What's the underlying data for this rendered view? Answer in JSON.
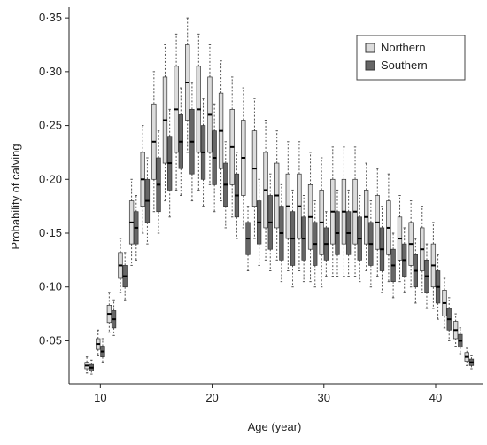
{
  "chart_data": {
    "type": "box",
    "xlabel": "Age (year)",
    "ylabel": "Probability of calving",
    "x": [
      9,
      10,
      11,
      12,
      13,
      14,
      15,
      16,
      17,
      18,
      19,
      20,
      21,
      22,
      23,
      24,
      25,
      26,
      27,
      28,
      29,
      30,
      31,
      32,
      33,
      34,
      35,
      36,
      37,
      38,
      39,
      40,
      41,
      42,
      43
    ],
    "xlim": [
      7.2,
      44.2
    ],
    "xticks": [
      10,
      20,
      30,
      40
    ],
    "ylim": [
      0.01,
      0.36
    ],
    "yticks": [
      {
        "value": 0.05,
        "label": "0·05"
      },
      {
        "value": 0.1,
        "label": "0·10"
      },
      {
        "value": 0.15,
        "label": "0·15"
      },
      {
        "value": 0.2,
        "label": "0·20"
      },
      {
        "value": 0.25,
        "label": "0·25"
      },
      {
        "value": 0.3,
        "label": "0·30"
      },
      {
        "value": 0.35,
        "label": "0·35"
      }
    ],
    "legend": "top-right",
    "series": [
      {
        "name": "Northern",
        "color": "#dcdcdc",
        "low": [
          0.02,
          0.036,
          0.058,
          0.095,
          0.12,
          0.15,
          0.17,
          0.18,
          0.19,
          0.225,
          0.19,
          0.195,
          0.18,
          0.165,
          0.155,
          0.145,
          0.125,
          0.125,
          0.115,
          0.115,
          0.105,
          0.1,
          0.11,
          0.11,
          0.11,
          0.115,
          0.11,
          0.105,
          0.105,
          0.1,
          0.095,
          0.08,
          0.062,
          0.045,
          0.027
        ],
        "q1": [
          0.024,
          0.042,
          0.067,
          0.108,
          0.14,
          0.175,
          0.2,
          0.215,
          0.225,
          0.255,
          0.225,
          0.225,
          0.21,
          0.195,
          0.185,
          0.175,
          0.155,
          0.155,
          0.145,
          0.145,
          0.135,
          0.13,
          0.14,
          0.14,
          0.14,
          0.14,
          0.135,
          0.13,
          0.125,
          0.12,
          0.115,
          0.1,
          0.073,
          0.052,
          0.031
        ],
        "median": [
          0.027,
          0.047,
          0.075,
          0.12,
          0.16,
          0.2,
          0.235,
          0.255,
          0.265,
          0.29,
          0.265,
          0.26,
          0.245,
          0.23,
          0.22,
          0.21,
          0.19,
          0.185,
          0.175,
          0.175,
          0.165,
          0.16,
          0.17,
          0.17,
          0.17,
          0.165,
          0.16,
          0.155,
          0.145,
          0.14,
          0.135,
          0.12,
          0.085,
          0.06,
          0.035
        ],
        "q3": [
          0.03,
          0.052,
          0.083,
          0.132,
          0.18,
          0.225,
          0.27,
          0.295,
          0.305,
          0.325,
          0.305,
          0.295,
          0.28,
          0.265,
          0.255,
          0.245,
          0.225,
          0.215,
          0.205,
          0.205,
          0.195,
          0.19,
          0.2,
          0.2,
          0.2,
          0.19,
          0.185,
          0.18,
          0.165,
          0.16,
          0.155,
          0.14,
          0.097,
          0.068,
          0.039
        ],
        "high": [
          0.035,
          0.06,
          0.095,
          0.145,
          0.2,
          0.25,
          0.3,
          0.325,
          0.335,
          0.35,
          0.335,
          0.325,
          0.31,
          0.295,
          0.285,
          0.275,
          0.255,
          0.245,
          0.235,
          0.235,
          0.225,
          0.22,
          0.23,
          0.23,
          0.23,
          0.215,
          0.21,
          0.205,
          0.185,
          0.18,
          0.175,
          0.16,
          0.108,
          0.075,
          0.043
        ]
      },
      {
        "name": "Southern",
        "color": "#666666",
        "low": [
          0.019,
          0.03,
          0.055,
          0.088,
          0.125,
          0.14,
          0.15,
          0.165,
          0.185,
          0.18,
          0.175,
          0.17,
          0.155,
          0.145,
          0.115,
          0.12,
          0.115,
          0.105,
          0.1,
          0.105,
          0.1,
          0.11,
          0.11,
          0.11,
          0.105,
          0.1,
          0.095,
          0.09,
          0.095,
          0.085,
          0.08,
          0.07,
          0.05,
          0.038,
          0.024
        ],
        "q1": [
          0.022,
          0.035,
          0.062,
          0.1,
          0.14,
          0.16,
          0.17,
          0.19,
          0.21,
          0.205,
          0.2,
          0.195,
          0.175,
          0.165,
          0.13,
          0.14,
          0.135,
          0.125,
          0.12,
          0.125,
          0.12,
          0.125,
          0.13,
          0.13,
          0.125,
          0.12,
          0.115,
          0.105,
          0.11,
          0.1,
          0.095,
          0.085,
          0.06,
          0.044,
          0.027
        ],
        "median": [
          0.025,
          0.04,
          0.07,
          0.11,
          0.155,
          0.18,
          0.195,
          0.215,
          0.235,
          0.235,
          0.225,
          0.22,
          0.195,
          0.185,
          0.145,
          0.16,
          0.16,
          0.15,
          0.145,
          0.145,
          0.14,
          0.14,
          0.15,
          0.15,
          0.145,
          0.14,
          0.135,
          0.12,
          0.125,
          0.115,
          0.11,
          0.1,
          0.07,
          0.05,
          0.03
        ],
        "q3": [
          0.028,
          0.045,
          0.078,
          0.12,
          0.17,
          0.2,
          0.22,
          0.24,
          0.26,
          0.265,
          0.25,
          0.245,
          0.215,
          0.205,
          0.16,
          0.18,
          0.185,
          0.175,
          0.17,
          0.165,
          0.16,
          0.155,
          0.17,
          0.17,
          0.165,
          0.16,
          0.155,
          0.135,
          0.14,
          0.13,
          0.125,
          0.115,
          0.08,
          0.056,
          0.033
        ],
        "high": [
          0.032,
          0.052,
          0.088,
          0.132,
          0.185,
          0.22,
          0.245,
          0.265,
          0.285,
          0.29,
          0.275,
          0.27,
          0.235,
          0.225,
          0.175,
          0.2,
          0.205,
          0.195,
          0.19,
          0.185,
          0.18,
          0.17,
          0.19,
          0.19,
          0.185,
          0.18,
          0.175,
          0.15,
          0.155,
          0.145,
          0.14,
          0.13,
          0.09,
          0.062,
          0.036
        ]
      }
    ]
  }
}
